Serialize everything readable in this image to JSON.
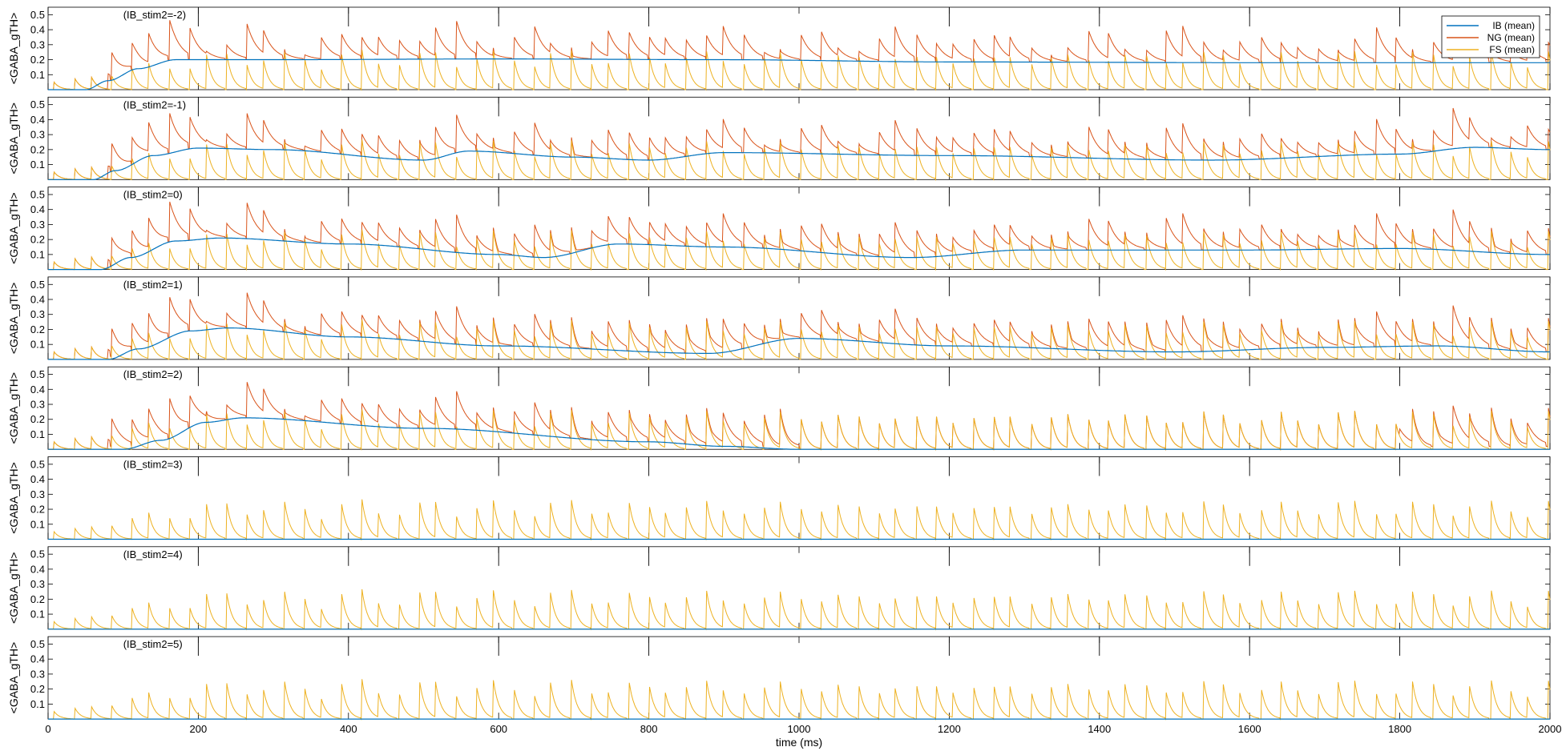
{
  "chart_data": {
    "type": "line",
    "layout": "8 stacked panels sharing a common time axis",
    "xlabel": "time (ms)",
    "xlim": [
      0,
      2000
    ],
    "x_ticks": [
      0,
      200,
      400,
      600,
      800,
      1000,
      1200,
      1400,
      1600,
      1800,
      2000
    ],
    "ylabel": "<GABA_gTH>",
    "ylim": [
      0,
      0.55
    ],
    "y_ticks": [
      0.1,
      0.2,
      0.3,
      0.4,
      0.5
    ],
    "grid": false,
    "legend": {
      "position": "top-right",
      "entries": [
        "IB (mean)",
        "NG (mean)",
        "FS (mean)"
      ]
    },
    "colors": {
      "IB": "#0072BD",
      "NG": "#D95319",
      "FS": "#EDB120"
    },
    "event_times_ms": [
      200,
      400,
      600,
      800,
      1200,
      1400,
      1600,
      1800
    ],
    "fs_pulse_period_ms": 25.5,
    "fs_peak_range": [
      0.1,
      0.33
    ],
    "ng_peak_range": [
      0.25,
      0.52
    ],
    "panels": [
      {
        "label": "(IB_stim2=-2)",
        "IB": [
          [
            0,
            0
          ],
          [
            50,
            0
          ],
          [
            80,
            0.06
          ],
          [
            120,
            0.14
          ],
          [
            170,
            0.2
          ],
          [
            300,
            0.2
          ],
          [
            600,
            0.205
          ],
          [
            900,
            0.2
          ],
          [
            1200,
            0.185
          ],
          [
            1600,
            0.18
          ],
          [
            2000,
            0.18
          ]
        ],
        "NG_active": [
          [
            80,
            2000
          ]
        ]
      },
      {
        "label": "(IB_stim2=-1)",
        "IB": [
          [
            0,
            0
          ],
          [
            60,
            0
          ],
          [
            90,
            0.06
          ],
          [
            140,
            0.16
          ],
          [
            200,
            0.21
          ],
          [
            300,
            0.2
          ],
          [
            500,
            0.13
          ],
          [
            560,
            0.19
          ],
          [
            700,
            0.15
          ],
          [
            800,
            0.13
          ],
          [
            900,
            0.18
          ],
          [
            1200,
            0.16
          ],
          [
            1550,
            0.13
          ],
          [
            1800,
            0.17
          ],
          [
            1900,
            0.215
          ],
          [
            2000,
            0.2
          ]
        ],
        "NG_active": [
          [
            80,
            2000
          ]
        ]
      },
      {
        "label": "(IB_stim2=0)",
        "IB": [
          [
            0,
            0
          ],
          [
            70,
            0
          ],
          [
            110,
            0.08
          ],
          [
            170,
            0.19
          ],
          [
            230,
            0.21
          ],
          [
            400,
            0.17
          ],
          [
            600,
            0.1
          ],
          [
            660,
            0.08
          ],
          [
            760,
            0.17
          ],
          [
            900,
            0.15
          ],
          [
            1150,
            0.08
          ],
          [
            1300,
            0.13
          ],
          [
            1600,
            0.13
          ],
          [
            1800,
            0.14
          ],
          [
            2000,
            0.1
          ]
        ],
        "NG_active": [
          [
            80,
            2000
          ]
        ]
      },
      {
        "label": "(IB_stim2=1)",
        "IB": [
          [
            0,
            0
          ],
          [
            80,
            0
          ],
          [
            120,
            0.07
          ],
          [
            190,
            0.19
          ],
          [
            240,
            0.21
          ],
          [
            400,
            0.15
          ],
          [
            600,
            0.09
          ],
          [
            880,
            0.04
          ],
          [
            1000,
            0.14
          ],
          [
            1200,
            0.09
          ],
          [
            1500,
            0.05
          ],
          [
            1700,
            0.08
          ],
          [
            1850,
            0.09
          ],
          [
            2000,
            0.05
          ]
        ],
        "NG_active": [
          [
            80,
            2000
          ]
        ]
      },
      {
        "label": "(IB_stim2=2)",
        "IB": [
          [
            0,
            0
          ],
          [
            100,
            0
          ],
          [
            150,
            0.06
          ],
          [
            210,
            0.18
          ],
          [
            260,
            0.21
          ],
          [
            500,
            0.14
          ],
          [
            800,
            0.05
          ],
          [
            900,
            0.02
          ],
          [
            1000,
            0
          ],
          [
            2000,
            0
          ]
        ],
        "NG_active": [
          [
            80,
            1000
          ],
          [
            1800,
            2000
          ]
        ]
      },
      {
        "label": "(IB_stim2=3)",
        "IB": [
          [
            0,
            0
          ],
          [
            2000,
            0
          ]
        ],
        "NG_active": []
      },
      {
        "label": "(IB_stim2=4)",
        "IB": [
          [
            0,
            0
          ],
          [
            2000,
            0
          ]
        ],
        "NG_active": []
      },
      {
        "label": "(IB_stim2=5)",
        "IB": [
          [
            0,
            0
          ],
          [
            2000,
            0
          ]
        ],
        "NG_active": []
      }
    ]
  }
}
